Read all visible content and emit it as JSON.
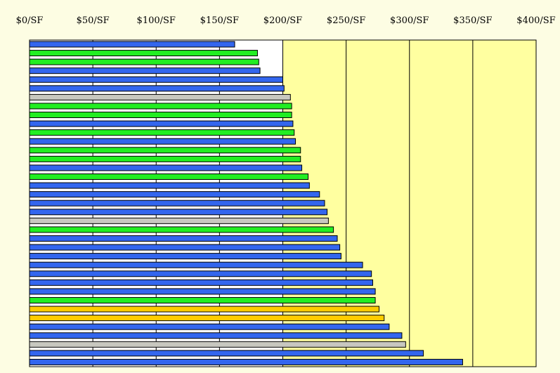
{
  "chart_data": {
    "type": "bar",
    "orientation": "horizontal",
    "x_ticks": [
      "$0/SF",
      "$50/SF",
      "$100/SF",
      "$150/SF",
      "$200/SF",
      "$250/SF",
      "$300/SF",
      "$350/SF",
      "$400/SF"
    ],
    "xlim": [
      0,
      400
    ],
    "grid": true,
    "legend": "none",
    "values": [
      162,
      180,
      181,
      182,
      200,
      201,
      206,
      207,
      207,
      208,
      209,
      210,
      214,
      214,
      215,
      220,
      221,
      229,
      233,
      235,
      236,
      240,
      243,
      245,
      246,
      263,
      270,
      271,
      273,
      273,
      276,
      280,
      284,
      294,
      297,
      311,
      342
    ],
    "bar_colors": [
      "#3366ee",
      "#22ee22",
      "#22ee22",
      "#3366ee",
      "#3366ee",
      "#3366ee",
      "#c8c8c0",
      "#22ee22",
      "#22ee22",
      "#3366ee",
      "#22ee22",
      "#3366ee",
      "#22ee22",
      "#22ee22",
      "#3366ee",
      "#22ee22",
      "#3366ee",
      "#3366ee",
      "#3366ee",
      "#3366ee",
      "#c8c8c0",
      "#22ee22",
      "#3366ee",
      "#3366ee",
      "#3366ee",
      "#3366ee",
      "#3366ee",
      "#3366ee",
      "#3366ee",
      "#22ee22",
      "#ffcc00",
      "#ffcc00",
      "#3366ee",
      "#3366ee",
      "#c8c8c0",
      "#3366ee",
      "#3366ee"
    ],
    "colors": {
      "plot_background": "#ffffff",
      "highlight_band": "#ffffa0",
      "page_background": "#fdfde3",
      "blue": "#3366ee",
      "green": "#22ee22",
      "gray": "#c8c8c0",
      "gold": "#ffcc00"
    },
    "highlight_from": 200
  }
}
